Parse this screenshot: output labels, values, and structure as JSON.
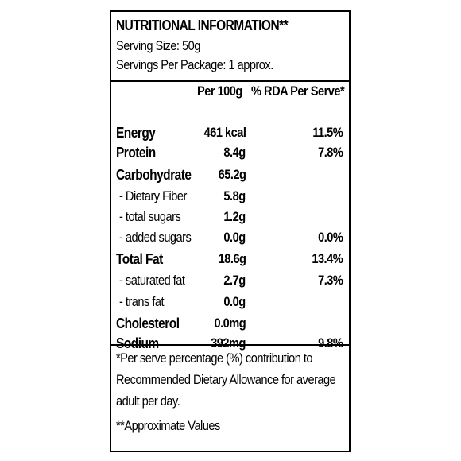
{
  "label": {
    "title": "NUTRITIONAL INFORMATION**",
    "serving_size": "Serving Size: 50g",
    "servings_per_package": "Servings Per Package: 1 approx.",
    "col_per100": "Per 100g",
    "col_rda": "% RDA Per Serve*",
    "rows": [
      {
        "name": "Energy",
        "per100": "461 kcal",
        "rda": "11.5%"
      },
      {
        "name": "Protein",
        "per100": "8.4g",
        "rda": "7.8%"
      },
      {
        "name": "Carbohydrate",
        "per100": "65.2g",
        "rda": ""
      },
      {
        "name": " - Dietary Fiber",
        "per100": "5.8g",
        "rda": ""
      },
      {
        "name": " - total sugars",
        "per100": "1.2g",
        "rda": ""
      },
      {
        "name": " - added sugars",
        "per100": "0.0g",
        "rda": "0.0%"
      },
      {
        "name": "Total Fat",
        "per100": "18.6g",
        "rda": "13.4%"
      },
      {
        "name": " - saturated fat",
        "per100": "2.7g",
        "rda": "7.3%"
      },
      {
        "name": " - trans fat",
        "per100": "0.0g",
        "rda": ""
      },
      {
        "name": "Cholesterol",
        "per100": "0.0mg",
        "rda": ""
      },
      {
        "name": "Sodium",
        "per100": "392mg",
        "rda": "9.8%"
      }
    ],
    "footnote_rda_1": "*Per serve percentage (%) contribution to",
    "footnote_rda_2": "Recommended Dietary Allowance for average",
    "footnote_rda_3": "adult per day.",
    "footnote_approx": "**Approximate Values"
  }
}
